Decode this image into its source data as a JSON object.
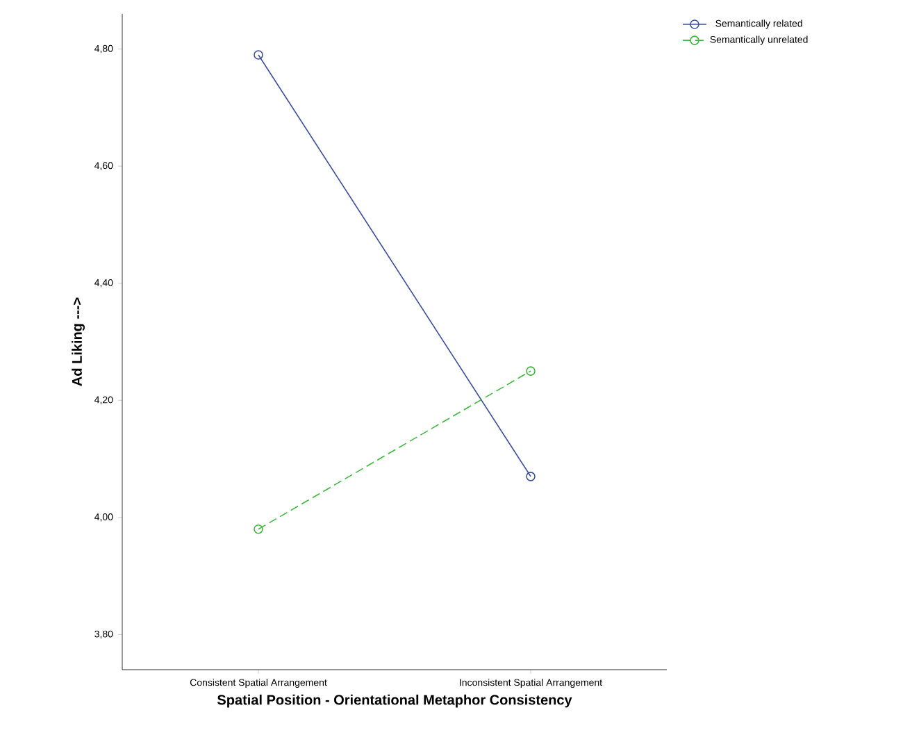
{
  "chart_data": {
    "type": "line",
    "xlabel": "Spatial Position - Orientational Metaphor Consistency",
    "ylabel": "Ad Liking --->",
    "categories": [
      "Consistent Spatial Arrangement",
      "Inconsistent Spatial Arrangement"
    ],
    "series": [
      {
        "name": "Semantically related",
        "color": "#3c4ea0",
        "line_style": "solid",
        "values": [
          4.79,
          4.07
        ]
      },
      {
        "name": "Semantically unrelated",
        "color": "#3dba3d",
        "line_style": "dashed",
        "values": [
          3.98,
          4.25
        ]
      }
    ],
    "ylim": [
      3.74,
      4.86
    ],
    "yticks": [
      {
        "value": 3.8,
        "label": "3,80"
      },
      {
        "value": 4.0,
        "label": "4,00"
      },
      {
        "value": 4.2,
        "label": "4,20"
      },
      {
        "value": 4.4,
        "label": "4,40"
      },
      {
        "value": 4.6,
        "label": "4,60"
      },
      {
        "value": 4.8,
        "label": "4,80"
      }
    ],
    "marker": "circle",
    "legend": "top right",
    "grid": false
  }
}
